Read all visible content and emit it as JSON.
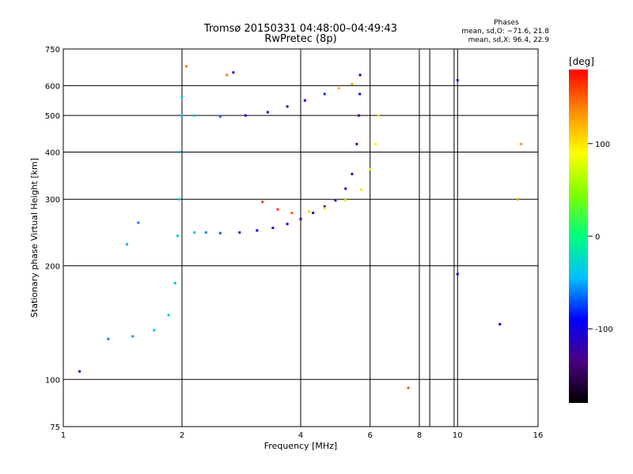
{
  "chart_data": {
    "type": "scatter",
    "title": "Tromsø 20150331 04:48:00–04:49:43",
    "subtitle": "RwPretec (8p)",
    "xlabel": "Frequency [MHz]",
    "ylabel": "Stationary phase Virtual Height [km]",
    "x_scale": "log",
    "y_scale": "log",
    "xlim": [
      1,
      16
    ],
    "ylim": [
      75,
      750
    ],
    "grid": true,
    "x_ticks": [
      1,
      2,
      4,
      6,
      8,
      10,
      16
    ],
    "y_ticks": [
      75,
      100,
      200,
      300,
      400,
      500,
      600,
      750
    ],
    "x_extra_gridlines": [
      8.5,
      9.8
    ],
    "stats": {
      "title": "Phases",
      "line_o": "mean, sd,O: −71.6, 21.8",
      "line_x": "mean, sd,X:  96.4, 22.9"
    },
    "colorbar": {
      "label": "[deg]",
      "range": [
        -180,
        180
      ],
      "ticks": [
        100,
        0,
        -100
      ],
      "colors": [
        "#000000",
        "#4b0082",
        "#0000ff",
        "#00bfff",
        "#00ff7f",
        "#7fff00",
        "#ffff00",
        "#ff8c00",
        "#ff0000"
      ]
    },
    "series": [
      {
        "values": [
          {
            "f": 2.15,
            "h": 245,
            "p": -40
          },
          {
            "f": 2.3,
            "h": 245,
            "p": -60
          },
          {
            "f": 2.5,
            "h": 244,
            "p": -70
          },
          {
            "f": 2.8,
            "h": 245,
            "p": -85
          },
          {
            "f": 3.1,
            "h": 248,
            "p": -95
          },
          {
            "f": 3.4,
            "h": 252,
            "p": -100
          },
          {
            "f": 3.7,
            "h": 258,
            "p": -105
          },
          {
            "f": 4.0,
            "h": 266,
            "p": -110
          },
          {
            "f": 4.3,
            "h": 276,
            "p": -110
          },
          {
            "f": 4.6,
            "h": 287,
            "p": -110
          },
          {
            "f": 4.9,
            "h": 298,
            "p": -115
          },
          {
            "f": 5.2,
            "h": 320,
            "p": -110
          },
          {
            "f": 5.4,
            "h": 350,
            "p": -110
          },
          {
            "f": 5.55,
            "h": 420,
            "p": -115
          },
          {
            "f": 5.62,
            "h": 500,
            "p": -120
          },
          {
            "f": 5.65,
            "h": 570,
            "p": -110
          },
          {
            "f": 5.66,
            "h": 640,
            "p": -115
          },
          {
            "f": 2.15,
            "h": 500,
            "p": -40
          },
          {
            "f": 2.5,
            "h": 497,
            "p": -70
          },
          {
            "f": 2.9,
            "h": 500,
            "p": -95
          },
          {
            "f": 3.3,
            "h": 510,
            "p": -110
          },
          {
            "f": 3.7,
            "h": 528,
            "p": -115
          },
          {
            "f": 4.1,
            "h": 548,
            "p": -100
          },
          {
            "f": 4.6,
            "h": 570,
            "p": -80
          },
          {
            "f": 5.0,
            "h": 590,
            "p": 120
          },
          {
            "f": 5.4,
            "h": 605,
            "p": 130
          },
          {
            "f": 1.1,
            "h": 105,
            "p": -110
          },
          {
            "f": 1.3,
            "h": 128,
            "p": -60
          },
          {
            "f": 1.5,
            "h": 130,
            "p": -55
          },
          {
            "f": 1.7,
            "h": 135,
            "p": -45
          },
          {
            "f": 1.85,
            "h": 148,
            "p": -40
          },
          {
            "f": 1.92,
            "h": 180,
            "p": -45
          },
          {
            "f": 1.95,
            "h": 240,
            "p": -40
          },
          {
            "f": 1.97,
            "h": 300,
            "p": -40
          },
          {
            "f": 1.98,
            "h": 400,
            "p": -45
          },
          {
            "f": 1.99,
            "h": 500,
            "p": -40
          },
          {
            "f": 2.0,
            "h": 560,
            "p": -35
          },
          {
            "f": 1.55,
            "h": 260,
            "p": -60
          },
          {
            "f": 1.45,
            "h": 228,
            "p": -50
          },
          {
            "f": 3.2,
            "h": 295,
            "p": 160
          },
          {
            "f": 3.5,
            "h": 282,
            "p": 165
          },
          {
            "f": 3.8,
            "h": 276,
            "p": 150
          },
          {
            "f": 4.2,
            "h": 278,
            "p": 110
          },
          {
            "f": 4.6,
            "h": 284,
            "p": 100
          },
          {
            "f": 5.2,
            "h": 298,
            "p": 100
          },
          {
            "f": 5.7,
            "h": 318,
            "p": 100
          },
          {
            "f": 6.0,
            "h": 360,
            "p": 95
          },
          {
            "f": 6.2,
            "h": 420,
            "p": 95
          },
          {
            "f": 6.3,
            "h": 500,
            "p": 100
          },
          {
            "f": 2.6,
            "h": 640,
            "p": 140
          },
          {
            "f": 2.7,
            "h": 650,
            "p": -110
          },
          {
            "f": 2.05,
            "h": 675,
            "p": 140
          },
          {
            "f": 10.0,
            "h": 620,
            "p": -110
          },
          {
            "f": 14.2,
            "h": 300,
            "p": 130
          },
          {
            "f": 14.5,
            "h": 420,
            "p": 130
          },
          {
            "f": 12.8,
            "h": 140,
            "p": -110
          },
          {
            "f": 10.0,
            "h": 190,
            "p": -100
          },
          {
            "f": 7.5,
            "h": 95,
            "p": 150
          }
        ]
      }
    ]
  }
}
